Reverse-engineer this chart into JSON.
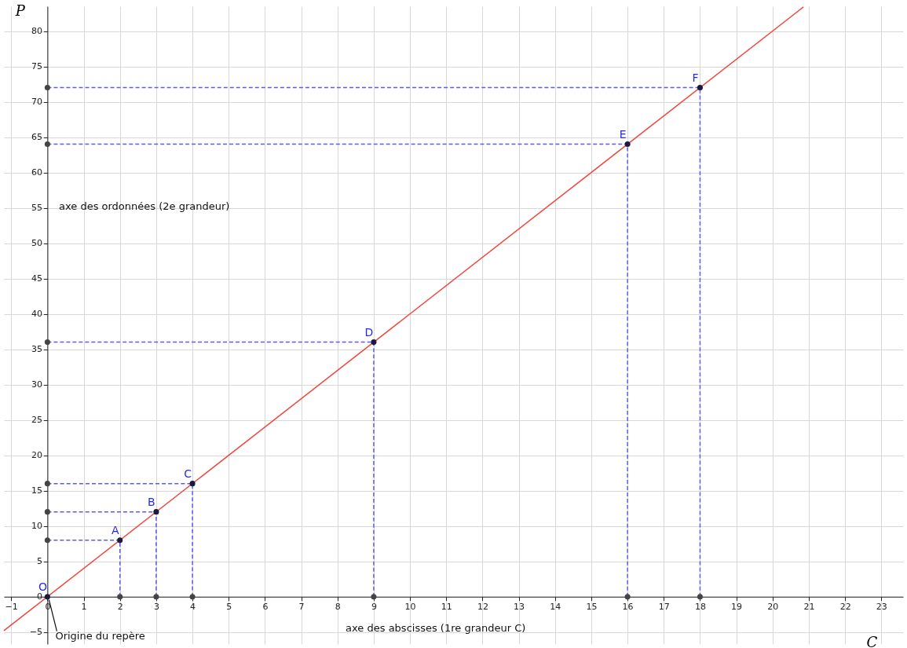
{
  "chart_data": {
    "type": "line",
    "xlabel": "C",
    "ylabel": "P",
    "xlim": [
      -1.2,
      23.6
    ],
    "ylim": [
      -6.7,
      83.5
    ],
    "xticks": [
      -1,
      0,
      1,
      2,
      3,
      4,
      5,
      6,
      7,
      8,
      9,
      10,
      11,
      12,
      13,
      14,
      15,
      16,
      17,
      18,
      19,
      20,
      21,
      22,
      23
    ],
    "yticks": [
      -5,
      0,
      5,
      10,
      15,
      20,
      25,
      30,
      35,
      40,
      45,
      50,
      55,
      60,
      65,
      70,
      75,
      80
    ],
    "grid": true,
    "series": [
      {
        "color": "#f0463c",
        "x": [
          -1.2,
          20.85
        ],
        "values": [
          -4.8,
          83.4
        ]
      },
      {
        "line_style": "dashed",
        "color": "#5b5bf0",
        "x": [
          0,
          2,
          2
        ],
        "values": [
          8,
          8,
          0
        ]
      },
      {
        "line_style": "dashed",
        "color": "#5b5bf0",
        "x": [
          0,
          3,
          3
        ],
        "values": [
          12,
          12,
          0
        ]
      },
      {
        "line_style": "dashed",
        "color": "#5b5bf0",
        "x": [
          0,
          4,
          4
        ],
        "values": [
          16,
          16,
          0
        ]
      },
      {
        "line_style": "dashed",
        "color": "#5b5bf0",
        "x": [
          0,
          9,
          9
        ],
        "values": [
          36,
          36,
          0
        ]
      },
      {
        "line_style": "dashed",
        "color": "#5b5bf0",
        "x": [
          0,
          16,
          16
        ],
        "values": [
          64,
          64,
          0
        ]
      },
      {
        "line_style": "dashed",
        "color": "#5b5bf0",
        "x": [
          0,
          18,
          18
        ],
        "values": [
          72,
          72,
          0
        ]
      },
      {
        "type": "scatter",
        "marker": "circle",
        "color": "#444444",
        "x": [
          0,
          0,
          0,
          0,
          0,
          0,
          2,
          3,
          4,
          9,
          16,
          18
        ],
        "values": [
          8,
          12,
          16,
          36,
          64,
          72,
          0,
          0,
          0,
          0,
          0,
          0
        ]
      },
      {
        "type": "scatter",
        "marker": "circle",
        "color": "#1a1a40",
        "x": [
          0,
          2,
          3,
          4,
          9,
          16,
          18
        ],
        "values": [
          0,
          8,
          12,
          16,
          36,
          64,
          72
        ]
      }
    ],
    "annotations": [
      {
        "text": "O",
        "x": 0,
        "y": 0
      },
      {
        "text": "A",
        "x": 2,
        "y": 8
      },
      {
        "text": "B",
        "x": 3,
        "y": 12
      },
      {
        "text": "C",
        "x": 4,
        "y": 16
      },
      {
        "text": "D",
        "x": 9,
        "y": 36
      },
      {
        "text": "E",
        "x": 16,
        "y": 64
      },
      {
        "text": "F",
        "x": 18,
        "y": 72
      },
      "axe des ordonnées (2e grandeur)",
      "axe des abscisses (1re grandeur C)",
      {
        "text": "Origine du repère",
        "x": 0,
        "y": 0
      }
    ]
  }
}
